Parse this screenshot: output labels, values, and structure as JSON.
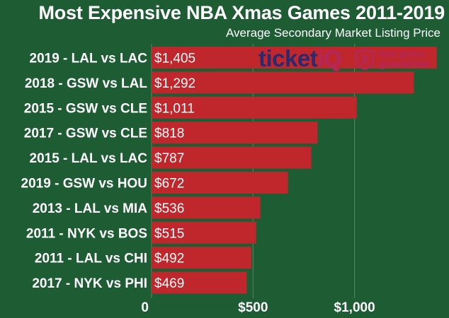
{
  "chart_data": {
    "type": "bar",
    "orientation": "horizontal",
    "title": "Most Expensive NBA Xmas Games 2011-2019",
    "subtitle": "Average Secondary Market Listing Price",
    "categories": [
      "2019 - LAL vs LAC",
      "2018 - GSW vs LAL",
      "2015 - GSW vs CLE",
      "2017 - GSW vs CLE",
      "2015 - LAL vs LAC",
      "2019 - GSW vs HOU",
      "2013 - LAL vs MIA",
      "2011 - NYK vs BOS",
      "2011 - LAL vs CHI",
      "2017 - NYK vs PHI"
    ],
    "values": [
      1405,
      1292,
      1011,
      818,
      787,
      672,
      536,
      515,
      492,
      469
    ],
    "value_labels": [
      "$1,405",
      "$1,292",
      "$1,011",
      "$818",
      "$787",
      "$672",
      "$536",
      "$515",
      "$492",
      "$469"
    ],
    "xlim": [
      0,
      1420
    ],
    "xticks": [
      0,
      500,
      1000
    ],
    "xtick_labels": [
      "0",
      "$500",
      "$1,000"
    ],
    "grid": true,
    "bar_color": "#c0272d",
    "background_color": "#1e5c34",
    "grid_color": "#4f8a5e",
    "text_color": "#ffffff"
  },
  "logo": {
    "name": "ticketiq-logo",
    "word_main": "ticket",
    "word_accent": "iQ",
    "tagline_1": "low price",
    "tagline_2": "guarantee",
    "navy": "#2a2a6e",
    "accent": "#b2275c"
  }
}
